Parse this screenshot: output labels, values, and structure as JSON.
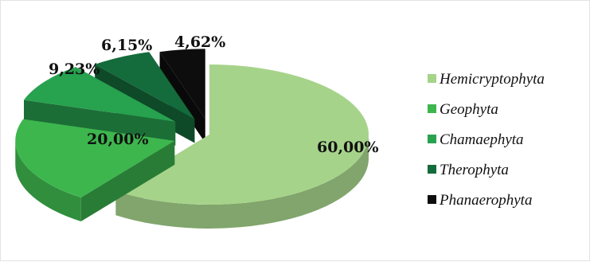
{
  "chart_data": {
    "type": "pie",
    "style": "3d-exploded",
    "categories": [
      "Hemicryptophyta",
      "Geophyta",
      "Chamaephyta",
      "Therophyta",
      "Phanaerophyta"
    ],
    "values": [
      60.0,
      20.0,
      9.23,
      6.15,
      4.62
    ],
    "labels": [
      "60,00%",
      "20,00%",
      "9,23%",
      "6,15%",
      "4,62%"
    ],
    "colors": [
      "#a6d38a",
      "#3db64e",
      "#27a24f",
      "#146b3b",
      "#0d0d0d"
    ],
    "legend_position": "right",
    "title": ""
  }
}
